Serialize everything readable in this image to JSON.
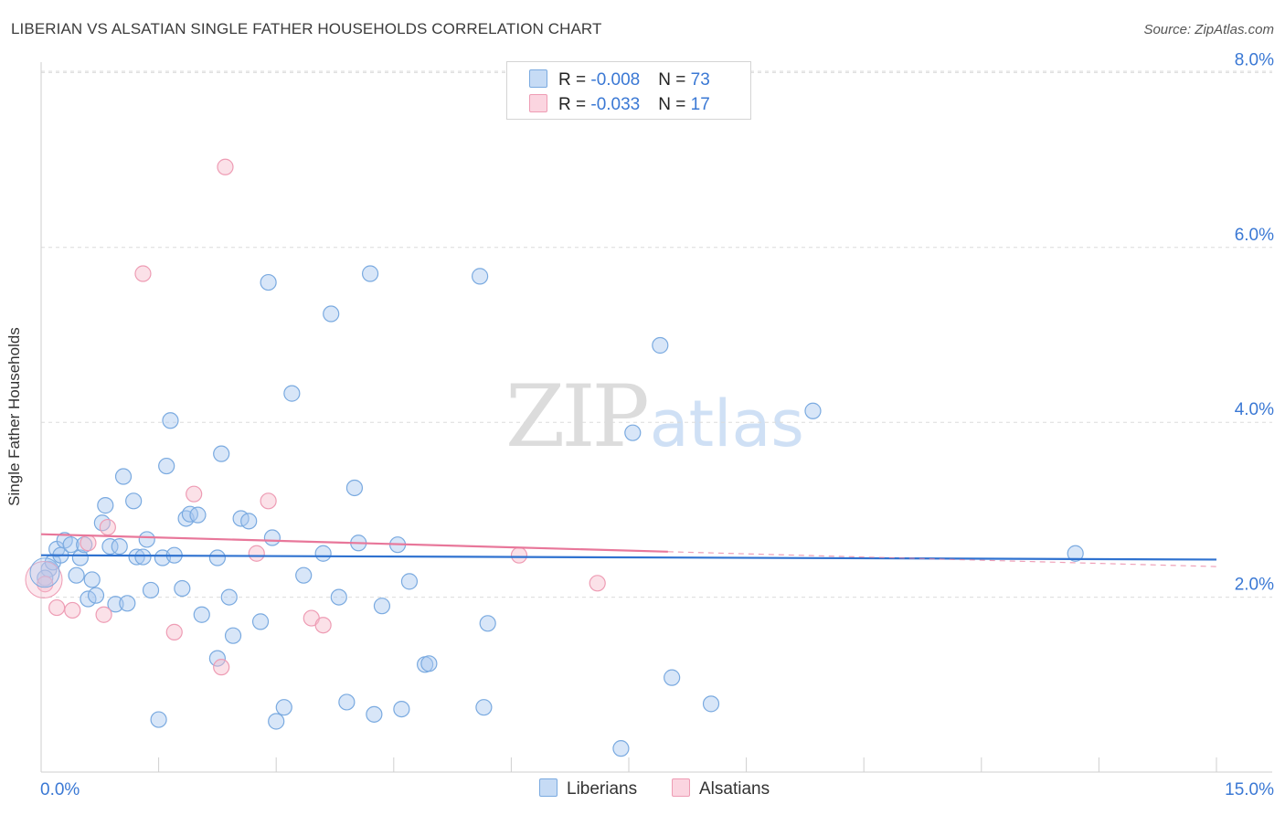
{
  "title": "LIBERIAN VS ALSATIAN SINGLE FATHER HOUSEHOLDS CORRELATION CHART",
  "source": "Source: ZipAtlas.com",
  "watermark": {
    "zip": "ZIP",
    "atlas": "atlas"
  },
  "legend_top": {
    "rows": [
      {
        "r_label": "R = ",
        "r_value": "-0.008",
        "n_label": "N = ",
        "n_value": "73",
        "color": "#a8c8f0"
      },
      {
        "r_label": "R = ",
        "r_value": "-0.033",
        "n_label": "N = ",
        "n_value": "17",
        "color": "#f6bccd"
      }
    ]
  },
  "legend_bottom": [
    {
      "label": "Liberians",
      "color": "#a8c8f0"
    },
    {
      "label": "Alsatians",
      "color": "#f6bccd"
    }
  ],
  "chart_data": {
    "type": "scatter",
    "title": "LIBERIAN VS ALSATIAN SINGLE FATHER HOUSEHOLDS CORRELATION CHART",
    "xlabel": "",
    "ylabel": "Single Father Households",
    "xlim": [
      0,
      15
    ],
    "ylim": [
      0,
      8.2
    ],
    "x_tick_labels": [
      {
        "value": 0,
        "label": "0.0%"
      },
      {
        "value": 15,
        "label": "15.0%"
      }
    ],
    "y_ticks": [
      {
        "value": 2,
        "label": "2.0%"
      },
      {
        "value": 4,
        "label": "4.0%"
      },
      {
        "value": 6,
        "label": "6.0%"
      },
      {
        "value": 8,
        "label": "8.0%"
      }
    ],
    "series": [
      {
        "name": "Liberians",
        "color": "#a8c8f0",
        "stroke": "#7aaae0",
        "trend_color": "#2f72d0",
        "trend": {
          "x0": 0,
          "y0": 2.48,
          "x1": 15,
          "y1": 2.43
        },
        "points": [
          [
            0.1,
            2.32
          ],
          [
            0.15,
            2.4
          ],
          [
            0.2,
            2.55
          ],
          [
            0.25,
            2.48
          ],
          [
            0.3,
            2.65
          ],
          [
            0.38,
            2.6
          ],
          [
            0.45,
            2.25
          ],
          [
            0.5,
            2.45
          ],
          [
            0.55,
            2.6
          ],
          [
            0.6,
            1.98
          ],
          [
            0.65,
            2.2
          ],
          [
            0.7,
            2.02
          ],
          [
            0.78,
            2.85
          ],
          [
            0.82,
            3.05
          ],
          [
            0.88,
            2.58
          ],
          [
            0.95,
            1.92
          ],
          [
            1.0,
            2.58
          ],
          [
            1.05,
            3.38
          ],
          [
            1.1,
            1.93
          ],
          [
            1.18,
            3.1
          ],
          [
            1.22,
            2.46
          ],
          [
            1.3,
            2.46
          ],
          [
            1.35,
            2.66
          ],
          [
            1.4,
            2.08
          ],
          [
            1.5,
            0.6
          ],
          [
            1.55,
            2.45
          ],
          [
            1.6,
            3.5
          ],
          [
            1.65,
            4.02
          ],
          [
            1.7,
            2.48
          ],
          [
            1.8,
            2.1
          ],
          [
            1.85,
            2.9
          ],
          [
            1.9,
            2.95
          ],
          [
            2.0,
            2.94
          ],
          [
            2.05,
            1.8
          ],
          [
            2.25,
            1.3
          ],
          [
            2.25,
            2.45
          ],
          [
            2.3,
            3.64
          ],
          [
            2.4,
            2.0
          ],
          [
            2.45,
            1.56
          ],
          [
            2.55,
            2.9
          ],
          [
            2.65,
            2.87
          ],
          [
            2.8,
            1.72
          ],
          [
            2.9,
            5.6
          ],
          [
            2.95,
            2.68
          ],
          [
            3.0,
            0.58
          ],
          [
            3.1,
            0.74
          ],
          [
            3.2,
            4.33
          ],
          [
            3.35,
            2.25
          ],
          [
            3.6,
            2.5
          ],
          [
            3.7,
            5.24
          ],
          [
            3.8,
            2.0
          ],
          [
            3.9,
            0.8
          ],
          [
            4.0,
            3.25
          ],
          [
            4.05,
            2.62
          ],
          [
            4.2,
            5.7
          ],
          [
            4.25,
            0.66
          ],
          [
            4.35,
            1.9
          ],
          [
            4.55,
            2.6
          ],
          [
            4.6,
            0.72
          ],
          [
            4.7,
            2.18
          ],
          [
            4.9,
            1.23
          ],
          [
            4.95,
            1.24
          ],
          [
            5.6,
            5.67
          ],
          [
            5.65,
            0.74
          ],
          [
            5.7,
            1.7
          ],
          [
            7.4,
            0.27
          ],
          [
            7.55,
            3.88
          ],
          [
            7.9,
            4.88
          ],
          [
            8.05,
            1.08
          ],
          [
            8.55,
            0.78
          ],
          [
            9.85,
            4.13
          ],
          [
            13.2,
            2.5
          ],
          [
            0.05,
            2.22
          ]
        ]
      },
      {
        "name": "Alsatians",
        "color": "#f6bccd",
        "stroke": "#ee9cb4",
        "trend_color": "#e8779a",
        "trend": {
          "x0": 0,
          "y0": 2.72,
          "x1": 8.0,
          "y1": 2.52
        },
        "trend_dashed": {
          "x0": 8.0,
          "y0": 2.52,
          "x1": 15,
          "y1": 2.35
        },
        "points": [
          [
            0.05,
            2.15
          ],
          [
            0.2,
            1.88
          ],
          [
            0.4,
            1.85
          ],
          [
            0.6,
            2.62
          ],
          [
            0.8,
            1.8
          ],
          [
            0.85,
            2.8
          ],
          [
            1.3,
            5.7
          ],
          [
            1.7,
            1.6
          ],
          [
            1.95,
            3.18
          ],
          [
            2.3,
            1.2
          ],
          [
            2.35,
            6.92
          ],
          [
            2.75,
            2.5
          ],
          [
            2.9,
            3.1
          ],
          [
            3.45,
            1.76
          ],
          [
            3.6,
            1.68
          ],
          [
            6.1,
            2.48
          ],
          [
            7.1,
            2.16
          ]
        ]
      }
    ]
  }
}
